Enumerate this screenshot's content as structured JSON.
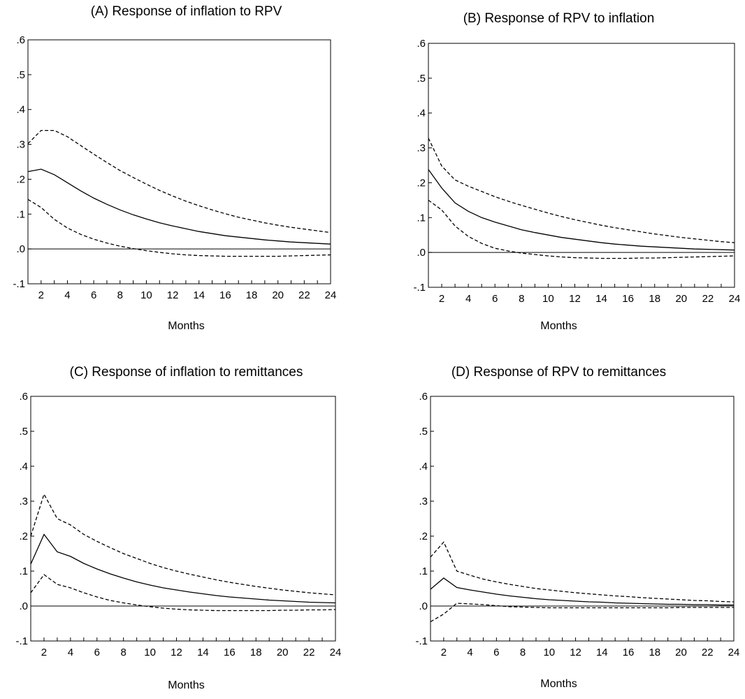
{
  "chart_data": [
    {
      "type": "line",
      "title": "(A) Response of inflation to RPV",
      "xlabel": "Months",
      "ylabel": "",
      "xlim": [
        1,
        24
      ],
      "ylim": [
        -0.1,
        0.6
      ],
      "x_ticks": [
        2,
        4,
        6,
        8,
        10,
        12,
        14,
        16,
        18,
        20,
        22,
        24
      ],
      "y_ticks": [
        ".6",
        ".5",
        ".4",
        ".3",
        ".2",
        ".1",
        ".0",
        "-.1"
      ],
      "x": [
        1,
        2,
        3,
        4,
        5,
        6,
        7,
        8,
        9,
        10,
        11,
        12,
        13,
        14,
        15,
        16,
        17,
        18,
        19,
        20,
        21,
        22,
        23,
        24
      ],
      "series": [
        {
          "style": "solid",
          "values": [
            0.222,
            0.229,
            0.213,
            0.19,
            0.167,
            0.146,
            0.128,
            0.112,
            0.098,
            0.086,
            0.075,
            0.066,
            0.058,
            0.05,
            0.044,
            0.038,
            0.034,
            0.03,
            0.026,
            0.023,
            0.02,
            0.018,
            0.016,
            0.014
          ]
        },
        {
          "style": "dashed",
          "values": [
            0.302,
            0.34,
            0.34,
            0.322,
            0.297,
            0.272,
            0.248,
            0.225,
            0.205,
            0.186,
            0.168,
            0.152,
            0.137,
            0.124,
            0.112,
            0.101,
            0.091,
            0.083,
            0.075,
            0.068,
            0.062,
            0.057,
            0.052,
            0.047
          ]
        },
        {
          "style": "dashed",
          "values": [
            0.142,
            0.119,
            0.085,
            0.06,
            0.042,
            0.028,
            0.017,
            0.008,
            0.001,
            -0.005,
            -0.01,
            -0.014,
            -0.017,
            -0.019,
            -0.02,
            -0.021,
            -0.021,
            -0.021,
            -0.021,
            -0.021,
            -0.02,
            -0.019,
            -0.018,
            -0.017
          ]
        }
      ]
    },
    {
      "type": "line",
      "title": "(B) Response of RPV to inflation",
      "xlabel": "Months",
      "ylabel": "",
      "xlim": [
        1,
        24
      ],
      "ylim": [
        -0.1,
        0.6
      ],
      "x_ticks": [
        2,
        4,
        6,
        8,
        10,
        12,
        14,
        16,
        18,
        20,
        22,
        24
      ],
      "y_ticks": [
        ".6",
        ".5",
        ".4",
        ".3",
        ".2",
        ".1",
        ".0",
        "-.1"
      ],
      "x": [
        1,
        2,
        3,
        4,
        5,
        6,
        7,
        8,
        9,
        10,
        11,
        12,
        13,
        14,
        15,
        16,
        17,
        18,
        19,
        20,
        21,
        22,
        23,
        24
      ],
      "series": [
        {
          "style": "solid",
          "values": [
            0.238,
            0.185,
            0.142,
            0.118,
            0.1,
            0.087,
            0.076,
            0.065,
            0.057,
            0.05,
            0.043,
            0.038,
            0.033,
            0.028,
            0.024,
            0.021,
            0.018,
            0.016,
            0.014,
            0.012,
            0.01,
            0.009,
            0.008,
            0.007
          ]
        },
        {
          "style": "dashed",
          "values": [
            0.328,
            0.248,
            0.208,
            0.19,
            0.175,
            0.16,
            0.147,
            0.135,
            0.124,
            0.113,
            0.103,
            0.094,
            0.086,
            0.078,
            0.071,
            0.065,
            0.059,
            0.053,
            0.048,
            0.043,
            0.039,
            0.035,
            0.031,
            0.028
          ]
        },
        {
          "style": "dashed",
          "values": [
            0.15,
            0.122,
            0.076,
            0.046,
            0.026,
            0.012,
            0.004,
            -0.002,
            -0.006,
            -0.01,
            -0.013,
            -0.015,
            -0.016,
            -0.017,
            -0.017,
            -0.017,
            -0.016,
            -0.016,
            -0.015,
            -0.014,
            -0.013,
            -0.012,
            -0.011,
            -0.01
          ]
        }
      ]
    },
    {
      "type": "line",
      "title": "(C) Response of inflation to remittances",
      "xlabel": "Months",
      "ylabel": "",
      "xlim": [
        1,
        24
      ],
      "ylim": [
        -0.1,
        0.6
      ],
      "x_ticks": [
        2,
        4,
        6,
        8,
        10,
        12,
        14,
        16,
        18,
        20,
        22,
        24
      ],
      "y_ticks": [
        ".6",
        ".5",
        ".4",
        ".3",
        ".2",
        ".1",
        ".0",
        "-.1"
      ],
      "x": [
        1,
        2,
        3,
        4,
        5,
        6,
        7,
        8,
        9,
        10,
        11,
        12,
        13,
        14,
        15,
        16,
        17,
        18,
        19,
        20,
        21,
        22,
        23,
        24
      ],
      "series": [
        {
          "style": "solid",
          "values": [
            0.12,
            0.205,
            0.155,
            0.142,
            0.122,
            0.106,
            0.092,
            0.08,
            0.069,
            0.06,
            0.052,
            0.046,
            0.04,
            0.035,
            0.03,
            0.026,
            0.023,
            0.02,
            0.017,
            0.015,
            0.013,
            0.011,
            0.01,
            0.009
          ]
        },
        {
          "style": "dashed",
          "values": [
            0.2,
            0.32,
            0.25,
            0.232,
            0.205,
            0.185,
            0.167,
            0.15,
            0.136,
            0.122,
            0.11,
            0.1,
            0.091,
            0.083,
            0.075,
            0.068,
            0.062,
            0.056,
            0.051,
            0.046,
            0.042,
            0.038,
            0.035,
            0.032
          ]
        },
        {
          "style": "dashed",
          "values": [
            0.038,
            0.09,
            0.062,
            0.052,
            0.038,
            0.026,
            0.016,
            0.009,
            0.003,
            -0.002,
            -0.006,
            -0.009,
            -0.011,
            -0.012,
            -0.013,
            -0.013,
            -0.013,
            -0.013,
            -0.013,
            -0.012,
            -0.012,
            -0.011,
            -0.011,
            -0.01
          ]
        }
      ]
    },
    {
      "type": "line",
      "title": "(D) Response of RPV to remittances",
      "xlabel": "Months",
      "ylabel": "",
      "xlim": [
        1,
        24
      ],
      "ylim": [
        -0.1,
        0.6
      ],
      "x_ticks": [
        2,
        4,
        6,
        8,
        10,
        12,
        14,
        16,
        18,
        20,
        22,
        24
      ],
      "y_ticks": [
        ".6",
        ".5",
        ".4",
        ".3",
        ".2",
        ".1",
        ".0",
        "-.1"
      ],
      "x": [
        1,
        2,
        3,
        4,
        5,
        6,
        7,
        8,
        9,
        10,
        11,
        12,
        13,
        14,
        15,
        16,
        17,
        18,
        19,
        20,
        21,
        22,
        23,
        24
      ],
      "series": [
        {
          "style": "solid",
          "values": [
            0.048,
            0.08,
            0.053,
            0.046,
            0.04,
            0.034,
            0.029,
            0.025,
            0.021,
            0.018,
            0.016,
            0.014,
            0.012,
            0.011,
            0.009,
            0.008,
            0.007,
            0.006,
            0.005,
            0.005,
            0.004,
            0.004,
            0.003,
            0.003
          ]
        },
        {
          "style": "dashed",
          "values": [
            0.14,
            0.183,
            0.1,
            0.088,
            0.077,
            0.069,
            0.062,
            0.056,
            0.05,
            0.046,
            0.042,
            0.038,
            0.035,
            0.032,
            0.029,
            0.027,
            0.024,
            0.022,
            0.02,
            0.018,
            0.016,
            0.015,
            0.013,
            0.012
          ]
        },
        {
          "style": "dashed",
          "values": [
            -0.045,
            -0.023,
            0.008,
            0.006,
            0.004,
            0.001,
            -0.002,
            -0.003,
            -0.004,
            -0.005,
            -0.005,
            -0.005,
            -0.005,
            -0.005,
            -0.005,
            -0.005,
            -0.005,
            -0.005,
            -0.005,
            -0.004,
            -0.004,
            -0.004,
            -0.004,
            -0.004
          ]
        }
      ]
    }
  ]
}
